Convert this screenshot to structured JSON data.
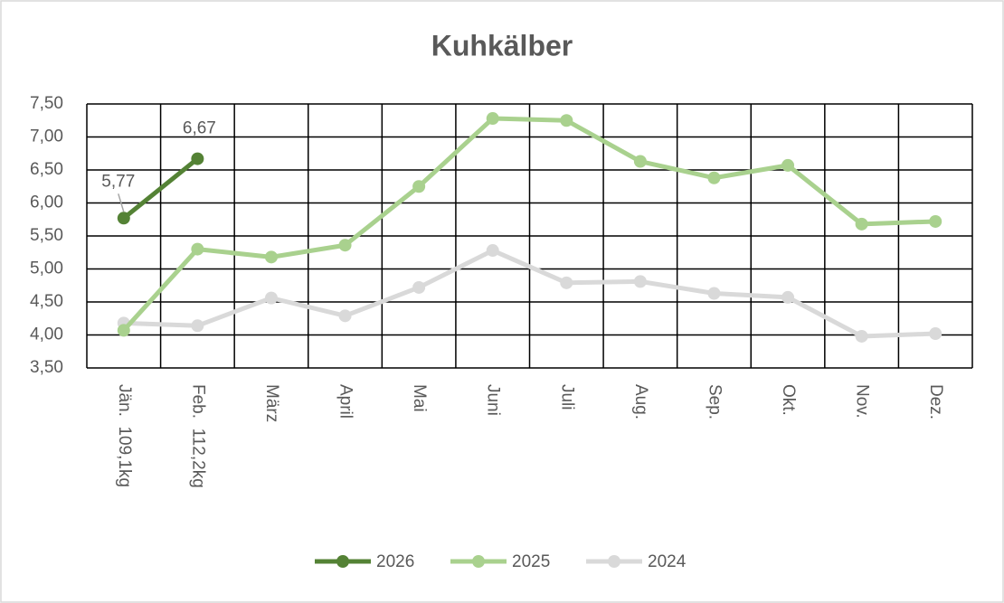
{
  "chart_data": {
    "type": "line",
    "title": "Kuhkälber",
    "categories": [
      "Jän.  109,1kg",
      "Feb.  112,2kg",
      "März",
      "April",
      "Mai",
      "Juni",
      "Juli",
      "Aug.",
      "Sep.",
      "Okt.",
      "Nov.",
      "Dez."
    ],
    "series": [
      {
        "name": "2026",
        "color": "#548235",
        "values": [
          5.77,
          6.67,
          null,
          null,
          null,
          null,
          null,
          null,
          null,
          null,
          null,
          null
        ],
        "value_labels": [
          "5,77",
          "6,67",
          null,
          null,
          null,
          null,
          null,
          null,
          null,
          null,
          null,
          null
        ]
      },
      {
        "name": "2025",
        "color": "#a9d18e",
        "values": [
          4.07,
          5.3,
          5.18,
          5.36,
          6.25,
          7.28,
          7.25,
          6.63,
          6.38,
          6.57,
          5.68,
          5.72
        ]
      },
      {
        "name": "2024",
        "color": "#d9d9d9",
        "values": [
          4.18,
          4.14,
          4.56,
          4.29,
          4.72,
          5.28,
          4.79,
          4.81,
          4.63,
          4.57,
          3.98,
          4.02
        ]
      }
    ],
    "ylim": [
      3.5,
      7.5
    ],
    "yticks": [
      {
        "value": 3.5,
        "label": "3,50"
      },
      {
        "value": 4,
        "label": "4,00"
      },
      {
        "value": 4.5,
        "label": "4,50"
      },
      {
        "value": 5,
        "label": "5,00"
      },
      {
        "value": 5.5,
        "label": "5,50"
      },
      {
        "value": 6,
        "label": "6,00"
      },
      {
        "value": 6.5,
        "label": "6,50"
      },
      {
        "value": 7,
        "label": "7,00"
      },
      {
        "value": 7.5,
        "label": "7,50"
      }
    ],
    "grid": true,
    "legend": "bottom"
  }
}
